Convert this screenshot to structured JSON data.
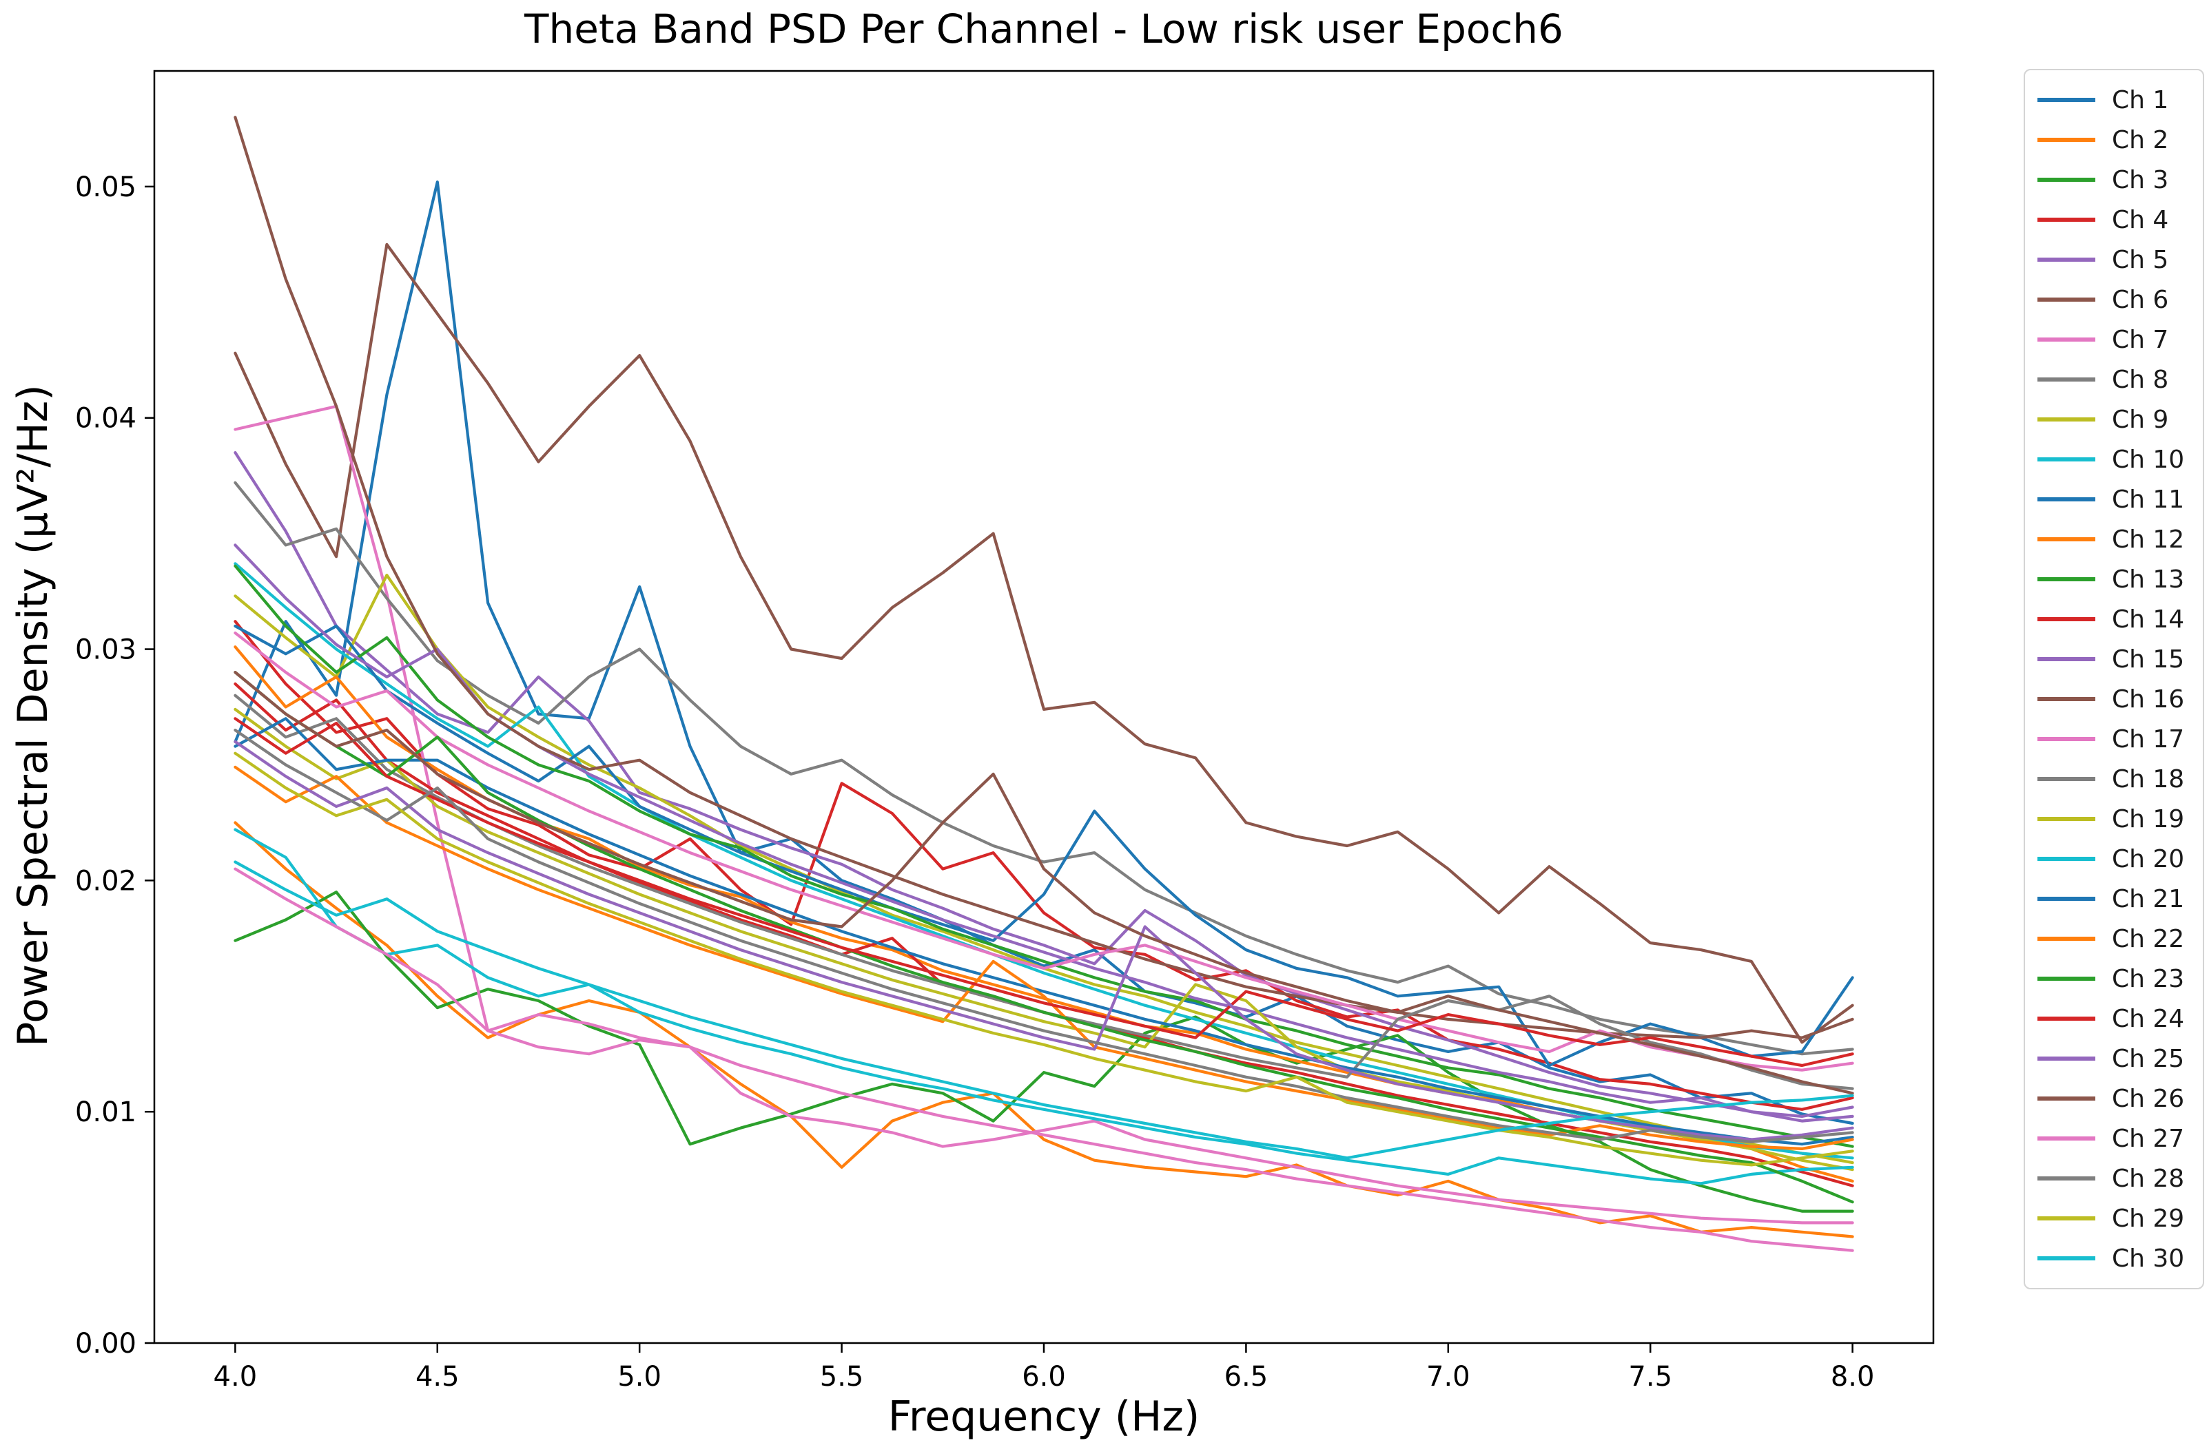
{
  "title": "Theta Band PSD Per Channel - Low risk user Epoch6",
  "axes": {
    "xlabel": "Frequency (Hz)",
    "ylabel": "Power Spectral Density (μV²/Hz)",
    "xlim": [
      3.8,
      8.2
    ],
    "ylim": [
      0,
      0.055
    ],
    "x_ticks": [
      {
        "v": 4.0,
        "label": "4.0"
      },
      {
        "v": 4.5,
        "label": "4.5"
      },
      {
        "v": 5.0,
        "label": "5.0"
      },
      {
        "v": 5.5,
        "label": "5.5"
      },
      {
        "v": 6.0,
        "label": "6.0"
      },
      {
        "v": 6.5,
        "label": "6.5"
      },
      {
        "v": 7.0,
        "label": "7.0"
      },
      {
        "v": 7.5,
        "label": "7.5"
      },
      {
        "v": 8.0,
        "label": "8.0"
      }
    ],
    "y_ticks": [
      {
        "v": 0.0,
        "label": "0.00"
      },
      {
        "v": 0.01,
        "label": "0.01"
      },
      {
        "v": 0.02,
        "label": "0.02"
      },
      {
        "v": 0.03,
        "label": "0.03"
      },
      {
        "v": 0.04,
        "label": "0.04"
      },
      {
        "v": 0.05,
        "label": "0.05"
      }
    ],
    "grid": false,
    "legend_position": "outside-right"
  },
  "chart_data": {
    "type": "line",
    "x_start": 4.0,
    "x_step": 0.125,
    "x_end": 8.0,
    "y_scale": 0.0001,
    "series": [
      {
        "name": "Ch 1",
        "color": "#1f77b4",
        "values": [
          260,
          312,
          280,
          410,
          502,
          320,
          272,
          270,
          327,
          258,
          212,
          218,
          200,
          192,
          183,
          172,
          163,
          170,
          152,
          147,
          141,
          150,
          137,
          131,
          126,
          130,
          119,
          113,
          116,
          106,
          108,
          99,
          95
        ]
      },
      {
        "name": "Ch 2",
        "color": "#ff7f0e",
        "values": [
          225,
          205,
          188,
          172,
          150,
          132,
          142,
          148,
          143,
          128,
          112,
          98,
          76,
          96,
          104,
          108,
          88,
          79,
          76,
          74,
          72,
          77,
          68,
          64,
          70,
          62,
          58,
          52,
          55,
          48,
          50,
          48,
          46
        ]
      },
      {
        "name": "Ch 3",
        "color": "#2ca02c",
        "values": [
          174,
          183,
          195,
          167,
          145,
          153,
          148,
          137,
          129,
          86,
          93,
          99,
          106,
          112,
          108,
          96,
          117,
          111,
          134,
          141,
          129,
          121,
          127,
          133,
          117,
          104,
          94,
          87,
          75,
          68,
          62,
          57,
          57
        ]
      },
      {
        "name": "Ch 4",
        "color": "#d62728",
        "values": [
          312,
          285,
          264,
          270,
          246,
          231,
          224,
          211,
          205,
          218,
          196,
          181,
          242,
          229,
          205,
          212,
          186,
          171,
          168,
          157,
          161,
          148,
          141,
          144,
          131,
          127,
          121,
          114,
          112,
          108,
          104,
          101,
          106
        ]
      },
      {
        "name": "Ch 5",
        "color": "#9467bd",
        "values": [
          385,
          351,
          310,
          291,
          272,
          264,
          288,
          269,
          238,
          231,
          222,
          214,
          207,
          196,
          188,
          179,
          172,
          164,
          187,
          174,
          159,
          151,
          144,
          137,
          131,
          124,
          117,
          111,
          108,
          104,
          100,
          96,
          98
        ]
      },
      {
        "name": "Ch 6",
        "color": "#8c564b",
        "values": [
          428,
          380,
          340,
          475,
          445,
          415,
          381,
          405,
          427,
          390,
          340,
          300,
          296,
          318,
          333,
          350,
          274,
          277,
          259,
          253,
          225,
          219,
          215,
          221,
          205,
          186,
          206,
          190,
          173,
          170,
          165,
          130,
          146
        ]
      },
      {
        "name": "Ch 7",
        "color": "#e377c2",
        "values": [
          395,
          400,
          405,
          324,
          225,
          135,
          128,
          125,
          131,
          128,
          108,
          98,
          95,
          91,
          85,
          88,
          92,
          96,
          88,
          84,
          80,
          76,
          72,
          68,
          65,
          62,
          60,
          58,
          56,
          54,
          53,
          52,
          52
        ]
      },
      {
        "name": "Ch 8",
        "color": "#7f7f7f",
        "values": [
          372,
          345,
          352,
          322,
          295,
          280,
          268,
          288,
          300,
          278,
          258,
          246,
          252,
          237,
          225,
          215,
          208,
          212,
          196,
          186,
          176,
          168,
          161,
          156,
          163,
          151,
          146,
          140,
          136,
          133,
          129,
          125,
          127
        ]
      },
      {
        "name": "Ch 9",
        "color": "#bcbd22",
        "values": [
          323,
          305,
          288,
          332,
          300,
          275,
          262,
          250,
          240,
          228,
          215,
          205,
          195,
          185,
          178,
          170,
          162,
          155,
          150,
          143,
          137,
          130,
          125,
          120,
          115,
          110,
          105,
          100,
          95,
          90,
          86,
          82,
          78
        ]
      },
      {
        "name": "Ch 10",
        "color": "#17becf",
        "values": [
          337,
          318,
          300,
          285,
          270,
          258,
          275,
          245,
          232,
          220,
          210,
          200,
          192,
          184,
          176,
          168,
          160,
          153,
          146,
          140,
          134,
          128,
          122,
          117,
          112,
          107,
          102,
          97,
          93,
          89,
          85,
          82,
          80
        ]
      },
      {
        "name": "Ch 11",
        "color": "#1f77b4",
        "values": [
          310,
          298,
          310,
          282,
          268,
          255,
          243,
          258,
          232,
          222,
          212,
          204,
          196,
          188,
          181,
          174,
          194,
          230,
          205,
          185,
          170,
          162,
          158,
          150,
          152,
          154,
          120,
          130,
          138,
          132,
          124,
          126,
          158
        ]
      },
      {
        "name": "Ch 12",
        "color": "#ff7f0e",
        "values": [
          301,
          275,
          288,
          262,
          248,
          235,
          225,
          218,
          206,
          198,
          193,
          182,
          175,
          170,
          161,
          155,
          149,
          143,
          137,
          134,
          127,
          122,
          117,
          112,
          108,
          105,
          100,
          96,
          92,
          88,
          84,
          76,
          70
        ]
      },
      {
        "name": "Ch 13",
        "color": "#2ca02c",
        "values": [
          336,
          310,
          290,
          305,
          278,
          262,
          250,
          243,
          230,
          220,
          214,
          202,
          194,
          188,
          179,
          172,
          165,
          158,
          152,
          148,
          140,
          135,
          129,
          124,
          119,
          116,
          110,
          106,
          101,
          97,
          93,
          89,
          85
        ]
      },
      {
        "name": "Ch 14",
        "color": "#d62728",
        "values": [
          285,
          265,
          278,
          252,
          238,
          228,
          218,
          208,
          199,
          191,
          183,
          176,
          168,
          175,
          155,
          149,
          143,
          137,
          132,
          126,
          121,
          117,
          112,
          107,
          103,
          99,
          95,
          91,
          87,
          84,
          80,
          74,
          68
        ]
      },
      {
        "name": "Ch 15",
        "color": "#9467bd",
        "values": [
          345,
          322,
          302,
          288,
          300,
          272,
          258,
          246,
          236,
          226,
          216,
          207,
          199,
          191,
          183,
          176,
          169,
          162,
          156,
          149,
          144,
          138,
          132,
          127,
          122,
          117,
          113,
          108,
          104,
          106,
          100,
          98,
          102
        ]
      },
      {
        "name": "Ch 16",
        "color": "#8c564b",
        "values": [
          530,
          460,
          405,
          340,
          298,
          272,
          258,
          248,
          252,
          238,
          228,
          218,
          210,
          202,
          194,
          187,
          180,
          173,
          166,
          160,
          154,
          150,
          146,
          143,
          140,
          138,
          136,
          134,
          133,
          132,
          135,
          132,
          140
        ]
      },
      {
        "name": "Ch 17",
        "color": "#e377c2",
        "values": [
          307,
          290,
          275,
          282,
          262,
          250,
          240,
          230,
          221,
          212,
          204,
          196,
          189,
          182,
          175,
          168,
          162,
          168,
          172,
          165,
          158,
          152,
          146,
          140,
          135,
          130,
          126,
          135,
          128,
          124,
          120,
          118,
          121
        ]
      },
      {
        "name": "Ch 18",
        "color": "#7f7f7f",
        "values": [
          280,
          262,
          270,
          248,
          236,
          225,
          215,
          206,
          198,
          190,
          182,
          175,
          168,
          161,
          155,
          149,
          143,
          138,
          133,
          128,
          123,
          119,
          115,
          140,
          148,
          144,
          150,
          138,
          130,
          125,
          118,
          112,
          110
        ]
      },
      {
        "name": "Ch 19",
        "color": "#bcbd22",
        "values": [
          274,
          258,
          244,
          252,
          232,
          221,
          212,
          203,
          194,
          186,
          178,
          171,
          164,
          157,
          151,
          145,
          139,
          134,
          128,
          155,
          148,
          128,
          118,
          113,
          109,
          104,
          100,
          96,
          92,
          88,
          84,
          79,
          75
        ]
      },
      {
        "name": "Ch 20",
        "color": "#17becf",
        "values": [
          222,
          210,
          180,
          168,
          172,
          158,
          150,
          155,
          143,
          136,
          130,
          125,
          119,
          114,
          110,
          105,
          101,
          97,
          93,
          89,
          86,
          82,
          79,
          76,
          73,
          80,
          77,
          74,
          71,
          69,
          73,
          75,
          76
        ]
      },
      {
        "name": "Ch 21",
        "color": "#1f77b4",
        "values": [
          258,
          270,
          248,
          252,
          252,
          240,
          230,
          220,
          211,
          202,
          194,
          186,
          178,
          171,
          164,
          158,
          152,
          146,
          140,
          135,
          129,
          124,
          119,
          115,
          110,
          106,
          102,
          98,
          94,
          91,
          88,
          86,
          89
        ]
      },
      {
        "name": "Ch 22",
        "color": "#ff7f0e",
        "values": [
          249,
          234,
          245,
          225,
          215,
          205,
          196,
          188,
          180,
          172,
          165,
          158,
          151,
          145,
          139,
          165,
          150,
          128,
          123,
          118,
          113,
          109,
          105,
          101,
          97,
          93,
          90,
          94,
          90,
          87,
          85,
          84,
          88
        ]
      },
      {
        "name": "Ch 23",
        "color": "#2ca02c",
        "values": [
          290,
          272,
          258,
          245,
          262,
          238,
          226,
          215,
          205,
          196,
          187,
          179,
          171,
          163,
          156,
          150,
          143,
          137,
          131,
          126,
          120,
          115,
          110,
          106,
          101,
          97,
          93,
          89,
          85,
          81,
          78,
          70,
          61
        ]
      },
      {
        "name": "Ch 24",
        "color": "#d62728",
        "values": [
          270,
          255,
          268,
          245,
          235,
          225,
          216,
          208,
          200,
          192,
          185,
          178,
          171,
          165,
          159,
          153,
          147,
          142,
          137,
          132,
          152,
          146,
          140,
          135,
          142,
          138,
          133,
          129,
          132,
          128,
          124,
          120,
          125
        ]
      },
      {
        "name": "Ch 25",
        "color": "#9467bd",
        "values": [
          260,
          245,
          232,
          240,
          222,
          212,
          203,
          194,
          186,
          178,
          170,
          163,
          156,
          150,
          144,
          138,
          132,
          127,
          180,
          160,
          140,
          125,
          118,
          112,
          108,
          104,
          100,
          96,
          93,
          90,
          88,
          90,
          93
        ]
      },
      {
        "name": "Ch 26",
        "color": "#8c564b",
        "values": [
          290,
          272,
          258,
          265,
          246,
          235,
          225,
          216,
          207,
          199,
          191,
          183,
          180,
          200,
          225,
          246,
          205,
          186,
          176,
          168,
          160,
          154,
          148,
          143,
          150,
          144,
          139,
          134,
          129,
          124,
          119,
          113,
          108
        ]
      },
      {
        "name": "Ch 27",
        "color": "#e377c2",
        "values": [
          205,
          192,
          180,
          168,
          155,
          135,
          142,
          138,
          132,
          128,
          120,
          114,
          108,
          103,
          98,
          94,
          90,
          86,
          82,
          78,
          75,
          71,
          68,
          65,
          62,
          59,
          56,
          53,
          50,
          48,
          44,
          42,
          40
        ]
      },
      {
        "name": "Ch 28",
        "color": "#7f7f7f",
        "values": [
          265,
          250,
          238,
          226,
          240,
          218,
          208,
          199,
          190,
          182,
          174,
          167,
          160,
          153,
          147,
          141,
          135,
          130,
          125,
          120,
          115,
          111,
          106,
          102,
          98,
          94,
          91,
          88,
          92,
          89,
          87,
          89,
          91
        ]
      },
      {
        "name": "Ch 29",
        "color": "#bcbd22",
        "values": [
          255,
          240,
          228,
          235,
          218,
          208,
          199,
          190,
          182,
          174,
          166,
          159,
          152,
          146,
          140,
          134,
          129,
          123,
          118,
          113,
          109,
          115,
          104,
          100,
          96,
          92,
          89,
          85,
          82,
          79,
          77,
          80,
          83
        ]
      },
      {
        "name": "Ch 30",
        "color": "#17becf",
        "values": [
          208,
          196,
          185,
          192,
          178,
          170,
          162,
          155,
          148,
          141,
          135,
          129,
          123,
          118,
          113,
          108,
          103,
          99,
          95,
          91,
          87,
          84,
          80,
          84,
          88,
          92,
          95,
          98,
          100,
          102,
          104,
          105,
          107
        ]
      }
    ]
  }
}
